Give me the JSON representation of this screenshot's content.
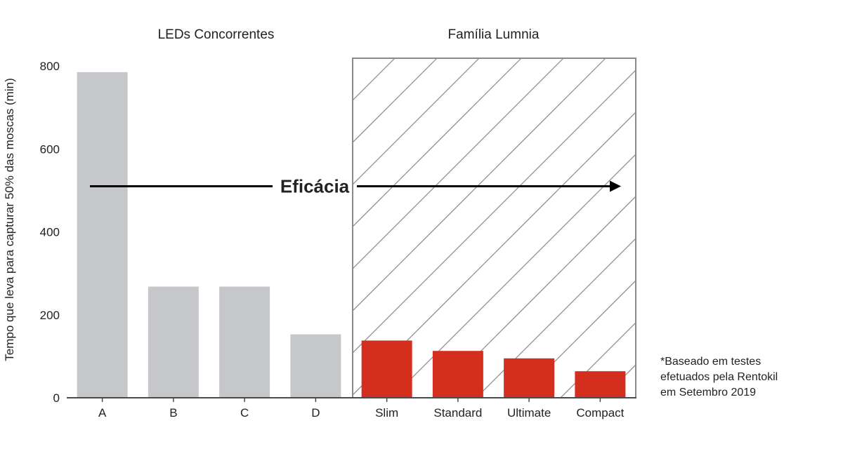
{
  "chart_data": {
    "type": "bar",
    "categories": [
      "A",
      "B",
      "C",
      "D",
      "Slim",
      "Standard",
      "Ultimate",
      "Compact"
    ],
    "values": [
      785,
      268,
      268,
      153,
      138,
      113,
      95,
      64
    ],
    "ylabel": "Tempo que leva para capturar 50% das moscas (min)",
    "ylim": [
      0,
      800
    ],
    "yticks": [
      0,
      200,
      400,
      600,
      800
    ],
    "groups": [
      {
        "label": "LEDs Concorrentes",
        "categories": [
          "A",
          "B",
          "C",
          "D"
        ],
        "color": "#c6c7ca"
      },
      {
        "label": "Família Lumnia",
        "categories": [
          "Slim",
          "Standard",
          "Ultimate",
          "Compact"
        ],
        "color": "#d42e1f",
        "hatched": true
      }
    ],
    "annotation": "Eficácia",
    "footnote": [
      "*Baseado em testes",
      "efetuados pela Rentokil",
      "em Setembro 2019"
    ],
    "grid": false,
    "legend": "none"
  }
}
